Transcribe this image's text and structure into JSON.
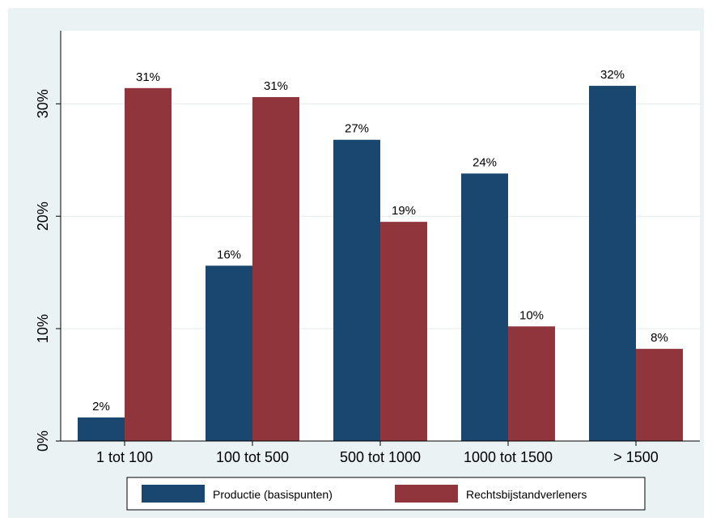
{
  "chart_data": {
    "type": "bar",
    "title": "",
    "xlabel": "",
    "ylabel": "",
    "categories": [
      "1 tot 100",
      "100 tot 500",
      "500 tot 1000",
      "1000 tot 1500",
      "> 1500"
    ],
    "series": [
      {
        "name": "Productie (basispunten)",
        "color": "#1a476f",
        "values": [
          2.1,
          15.6,
          26.8,
          23.8,
          31.6
        ],
        "labels": [
          "2%",
          "16%",
          "27%",
          "24%",
          "32%"
        ]
      },
      {
        "name": "Rechtsbijstandverleners",
        "color": "#90353b",
        "values": [
          31.4,
          30.6,
          19.5,
          10.2,
          8.2
        ],
        "labels": [
          "31%",
          "31%",
          "19%",
          "10%",
          "8%"
        ]
      }
    ],
    "ylim": [
      0,
      36.5
    ],
    "yticks": [
      0,
      10,
      20,
      30
    ],
    "ytick_labels": [
      "0%",
      "10%",
      "20%",
      "30%"
    ],
    "grid": true,
    "legend": "bottom"
  },
  "colors": {
    "plot_background": "#eaf2f3",
    "grid": "#ffffff"
  }
}
